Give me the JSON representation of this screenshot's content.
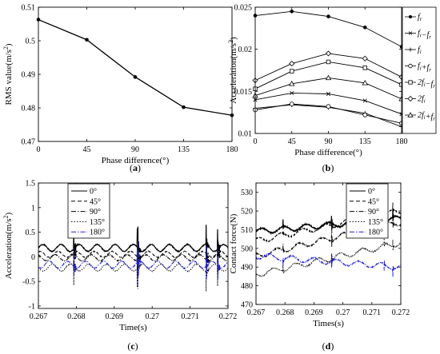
{
  "chart_data": [
    {
      "panel": "a",
      "caption_letter": "a",
      "type": "line",
      "xlabel": "Phase difference(°)",
      "ylabel_main": "RMS value(m/s",
      "ylabel_sup": "2",
      "ylabel_end": ")",
      "xlim": [
        0,
        180
      ],
      "ylim": [
        0.47,
        0.51
      ],
      "xticks": [
        0,
        45,
        90,
        135,
        180
      ],
      "xtick_labels": [
        "0",
        "45",
        "90",
        "135",
        "180"
      ],
      "yticks": [
        0.47,
        0.48,
        0.49,
        0.5,
        0.51
      ],
      "ytick_labels": [
        "0.47",
        "0.48",
        "0.49",
        "0.5",
        "0.51"
      ],
      "series": [
        {
          "x": [
            0,
            45,
            90,
            135,
            180
          ],
          "values": [
            0.5063,
            0.5003,
            0.4892,
            0.4802,
            0.4778
          ],
          "color": "#000000",
          "marker": "dot"
        }
      ]
    },
    {
      "panel": "b",
      "caption_letter": "b",
      "type": "line",
      "xlabel": "Phase difference(°)",
      "ylabel_main": "Acceleration(m/s",
      "ylabel_sup": "2",
      "ylabel_end": ")",
      "xlim": [
        0,
        180
      ],
      "ylim": [
        0.01,
        0.025
      ],
      "xticks": [
        0,
        45,
        90,
        135,
        180
      ],
      "xtick_labels": [
        "0",
        "45",
        "90",
        "135",
        "180"
      ],
      "yticks": [
        0.01,
        0.015,
        0.02,
        0.025
      ],
      "ytick_labels": [
        "0.01",
        "0.015",
        "0.02",
        "0.025"
      ],
      "legend_position": "right",
      "series": [
        {
          "name": "f_r",
          "legend": [
            [
              "f",
              ""
            ],
            [
              "r",
              "sub"
            ]
          ],
          "x": [
            0,
            45,
            90,
            135,
            180
          ],
          "values": [
            0.024,
            0.0245,
            0.0239,
            0.0226,
            0.0203
          ],
          "marker": "dot",
          "color": "#000000"
        },
        {
          "name": "f_i-f_r",
          "legend": [
            [
              "f",
              ""
            ],
            [
              "i",
              "sub"
            ],
            [
              "−f",
              ""
            ],
            [
              "r",
              "sub"
            ]
          ],
          "x": [
            0,
            45,
            90,
            135,
            180
          ],
          "values": [
            0.014,
            0.0148,
            0.0147,
            0.0139,
            0.0123
          ],
          "marker": "x",
          "color": "#000000"
        },
        {
          "name": "f_i",
          "legend": [
            [
              "f",
              ""
            ],
            [
              "i",
              "sub"
            ]
          ],
          "x": [
            0,
            45,
            90,
            135,
            180
          ],
          "values": [
            0.013,
            0.0134,
            0.0131,
            0.0124,
            0.0108
          ],
          "marker": "plus",
          "color": "#000000"
        },
        {
          "name": "f_i+f_r",
          "legend": [
            [
              "f",
              ""
            ],
            [
              "i",
              "sub"
            ],
            [
              "+f",
              ""
            ],
            [
              "r",
              "sub"
            ]
          ],
          "x": [
            0,
            45,
            90,
            135,
            180
          ],
          "values": [
            0.0128,
            0.0135,
            0.0132,
            0.0122,
            0.0112
          ],
          "marker": "circle",
          "color": "#000000"
        },
        {
          "name": "2f_i-f_r",
          "legend": [
            [
              "2f",
              ""
            ],
            [
              "i",
              "sub"
            ],
            [
              "−f",
              ""
            ],
            [
              "r",
              "sub"
            ]
          ],
          "x": [
            0,
            45,
            90,
            135,
            180
          ],
          "values": [
            0.0153,
            0.0174,
            0.0185,
            0.0178,
            0.0158
          ],
          "marker": "square",
          "color": "#000000"
        },
        {
          "name": "2f_i",
          "legend": [
            [
              "2f",
              ""
            ],
            [
              "i",
              "sub"
            ]
          ],
          "x": [
            0,
            45,
            90,
            135,
            180
          ],
          "values": [
            0.0163,
            0.0183,
            0.0195,
            0.0189,
            0.0167
          ],
          "marker": "diamond",
          "color": "#000000"
        },
        {
          "name": "2f_i+f_r",
          "legend": [
            [
              "2f",
              ""
            ],
            [
              "i",
              "sub"
            ],
            [
              "+f",
              ""
            ],
            [
              "r",
              "sub"
            ]
          ],
          "x": [
            0,
            45,
            90,
            135,
            180
          ],
          "values": [
            0.0145,
            0.0159,
            0.0166,
            0.016,
            0.0141
          ],
          "marker": "triangle",
          "color": "#000000"
        }
      ]
    },
    {
      "panel": "c",
      "caption_letter": "c",
      "type": "line",
      "xlabel": "Time(s)",
      "ylabel_main": "Acceleration(m/s",
      "ylabel_sup": "2",
      "ylabel_end": ")",
      "xlim": [
        0.267,
        0.272
      ],
      "ylim": [
        -1.05,
        1.5
      ],
      "xticks": [
        0.267,
        0.268,
        0.269,
        0.27,
        0.271,
        0.272
      ],
      "xtick_labels": [
        "0.267",
        "0.268",
        "0.269",
        "0.27",
        "0.271",
        "0.272"
      ],
      "yticks": [
        -1,
        -0.5,
        0,
        0.5,
        1,
        1.5
      ],
      "ytick_labels": [
        "-1",
        "-0.5",
        "0",
        "0.5",
        "1",
        "1.5"
      ],
      "legend_position": "top-left",
      "series": [
        {
          "name": "0°",
          "style": "solid",
          "color": "#000000",
          "offset": 0.18,
          "amp": 0.07,
          "seed": 1
        },
        {
          "name": "45°",
          "style": "dash",
          "color": "#000000",
          "offset": 0.05,
          "amp": 0.06,
          "seed": 2
        },
        {
          "name": "90°",
          "style": "dashdot",
          "color": "#000000",
          "offset": -0.02,
          "amp": 0.06,
          "seed": 3
        },
        {
          "name": "135°",
          "style": "dot",
          "color": "#000000",
          "offset": -0.22,
          "amp": 0.07,
          "seed": 4
        },
        {
          "name": "180°",
          "style": "dashdot",
          "color": "#1f1fd0",
          "offset": -0.16,
          "amp": 0.07,
          "seed": 5
        }
      ]
    },
    {
      "panel": "d",
      "caption_letter": "d",
      "type": "line",
      "xlabel": "Times(s)",
      "ylabel_main": "Contact force(N)",
      "ylabel_sup": "",
      "ylabel_end": "",
      "xlim": [
        0.267,
        0.272
      ],
      "ylim": [
        470,
        535
      ],
      "xticks": [
        0.267,
        0.268,
        0.269,
        0.27,
        0.271,
        0.272
      ],
      "xtick_labels": [
        "0.267",
        "0.268",
        "0.269",
        "0.27",
        "0.271",
        "0.272"
      ],
      "yticks": [
        470,
        480,
        490,
        500,
        510,
        520,
        530
      ],
      "ytick_labels": [
        "470",
        "480",
        "490",
        "500",
        "510",
        "520",
        "530"
      ],
      "legend_position": "top-right",
      "series": [
        {
          "name": "0°",
          "style": "solid",
          "color": "#000000",
          "start": 509,
          "end": 516,
          "seed": 11
        },
        {
          "name": "45°",
          "style": "dash",
          "color": "#000000",
          "start": 504,
          "end": 520,
          "seed": 12
        },
        {
          "name": "90°",
          "style": "dashdot",
          "color": "#000000",
          "start": 496,
          "end": 514,
          "seed": 13
        },
        {
          "name": "135°",
          "style": "dot",
          "color": "#000000",
          "start": 486,
          "end": 503,
          "seed": 14
        },
        {
          "name": "180°",
          "style": "dashdot",
          "color": "#1f1fd0",
          "start": 496,
          "end": 490,
          "seed": 15
        }
      ]
    }
  ]
}
